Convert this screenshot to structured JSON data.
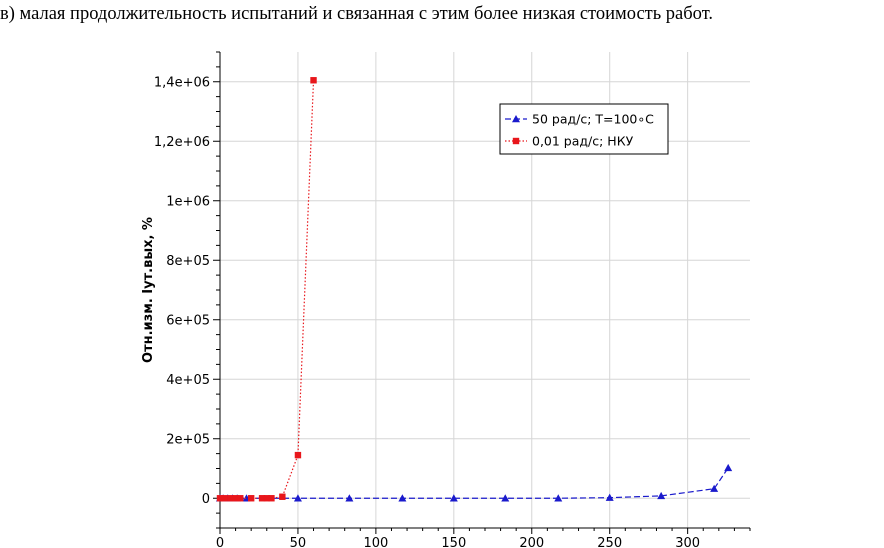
{
  "caption": "в) малая продолжительность испытаний и связанная с этим более низкая стоимость работ.",
  "chart_data": {
    "type": "line",
    "title": "",
    "xlabel": "",
    "ylabel": "Отн.изм. Iут.вых, %",
    "xlim": [
      0,
      340
    ],
    "ylim": [
      -100000,
      1500000
    ],
    "x_ticks": [
      0,
      50,
      100,
      150,
      200,
      250,
      300
    ],
    "x_tick_labels": [
      "0",
      "50",
      "100",
      "150",
      "200",
      "250",
      "300"
    ],
    "y_ticks": [
      0,
      200000,
      400000,
      600000,
      800000,
      1000000,
      1200000,
      1400000
    ],
    "y_tick_labels": [
      "0",
      "2e+05",
      "4e+05",
      "6e+05",
      "8e+05",
      "1e+06",
      "1,2e+06",
      "1,4e+06"
    ],
    "grid": true,
    "legend_position": "top-right",
    "series": [
      {
        "name": "50 рад/с; T=100∘C",
        "color": "#1a1acc",
        "line_style": "dashed",
        "marker": "triangle",
        "x": [
          0,
          2,
          5,
          8,
          11,
          17,
          50,
          83,
          117,
          150,
          183,
          217,
          250,
          283,
          317,
          326
        ],
        "y": [
          0,
          0,
          0,
          0,
          0,
          0,
          0,
          0,
          0,
          0,
          0,
          0,
          2000,
          8000,
          32000,
          102000
        ]
      },
      {
        "name": "0,01 рад/с; НКУ",
        "color": "#e8161b",
        "line_style": "dotted",
        "marker": "square",
        "x": [
          0,
          3,
          7,
          10,
          13,
          20,
          27,
          30,
          33,
          40,
          50,
          60
        ],
        "y": [
          0,
          0,
          0,
          0,
          0,
          0,
          0,
          0,
          0,
          5000,
          145000,
          1405000
        ]
      }
    ]
  }
}
